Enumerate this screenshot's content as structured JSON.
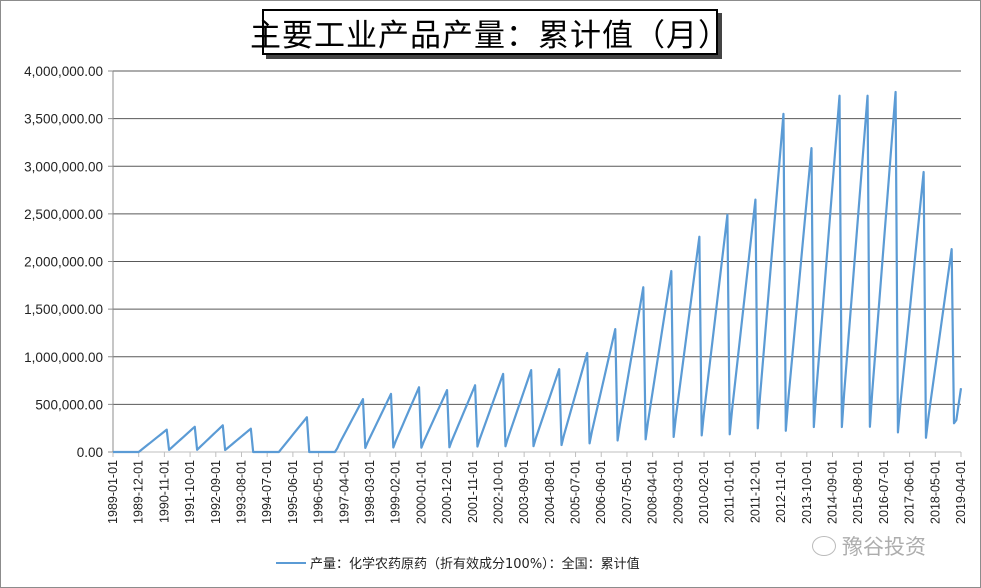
{
  "title": "主要工业产品产量：累计值（月）",
  "legend": {
    "label": "产量：化学农药原药（折有效成分100%）：全国：累计值",
    "color": "#5b9bd5"
  },
  "watermark": "豫谷投资",
  "chart_data": {
    "type": "line",
    "title": "主要工业产品产量：累计值（月）",
    "xlabel": "",
    "ylabel": "",
    "ylim": [
      0,
      4000000
    ],
    "grid": true,
    "legend_position": "bottom",
    "y_ticks": [
      "0.00",
      "500,000.00",
      "1,000,000.00",
      "1,500,000.00",
      "2,000,000.00",
      "2,500,000.00",
      "3,000,000.00",
      "3,500,000.00",
      "4,000,000.00"
    ],
    "x_ticks": [
      "1989-01-01",
      "1989-12-01",
      "1990-11-01",
      "1991-10-01",
      "1992-09-01",
      "1993-08-01",
      "1994-07-01",
      "1995-06-01",
      "1996-05-01",
      "1997-04-01",
      "1998-03-01",
      "1999-02-01",
      "2000-01-01",
      "2000-12-01",
      "2001-11-01",
      "2002-10-01",
      "2003-09-01",
      "2004-08-01",
      "2005-07-01",
      "2006-06-01",
      "2007-05-01",
      "2008-04-01",
      "2009-03-01",
      "2010-02-01",
      "2011-01-01",
      "2011-12-01",
      "2012-11-01",
      "2013-10-01",
      "2014-09-01",
      "2015-08-01",
      "2016-07-01",
      "2017-06-01",
      "2018-05-01",
      "2019-04-01"
    ],
    "series": [
      {
        "name": "产量：化学农药原药（折有效成分100%）：全国：累计值",
        "color": "#5b9bd5",
        "annual_peaks": {
          "1989": 0,
          "1990": 235000,
          "1991": 265000,
          "1992": 280000,
          "1993": 245000,
          "1994": 0,
          "1995": 365000,
          "1996": 0,
          "1997": 555000,
          "1998": 610000,
          "1999": 680000,
          "2000": 650000,
          "2001": 700000,
          "2002": 820000,
          "2003": 860000,
          "2004": 870000,
          "2005": 1040000,
          "2006": 1290000,
          "2007": 1730000,
          "2008": 1900000,
          "2009": 2260000,
          "2010": 2490000,
          "2011": 2650000,
          "2012": 3550000,
          "2013": 3190000,
          "2014": 3740000,
          "2015": 3740000,
          "2016": 3780000,
          "2017": 2940000,
          "2018": 2130000
        },
        "latest": {
          "date": "2019-04-01",
          "value": 670000
        }
      }
    ]
  }
}
